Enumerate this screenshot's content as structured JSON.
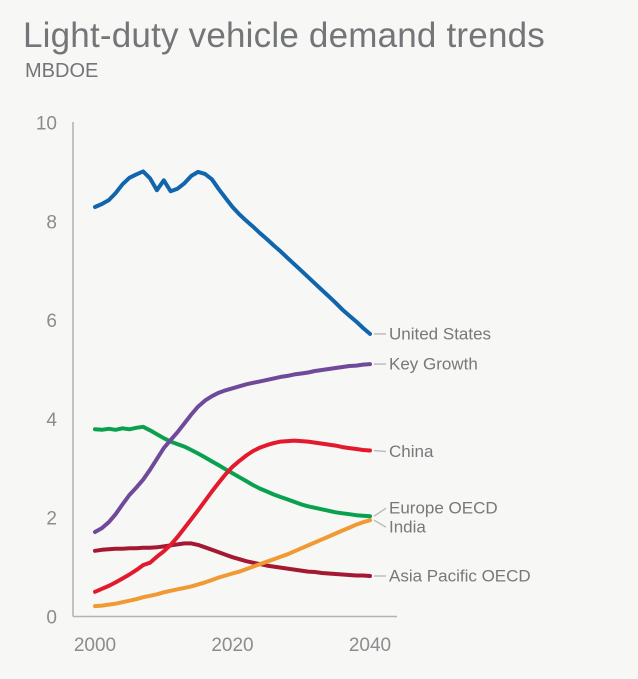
{
  "header": {
    "title": "Light-duty vehicle demand trends",
    "subtitle": "MBDOE"
  },
  "colors": {
    "background": "#f7f7f5",
    "title_text": "#747578",
    "axis": "#b4b4b4",
    "tick_text": "#8b8c8e",
    "label_text": "#77787b",
    "leader": "#b9b9b9"
  },
  "chart_data": {
    "type": "line",
    "title": "Light-duty vehicle demand trends",
    "ylabel": "MBDOE",
    "x_range": [
      2000,
      2040
    ],
    "x_step": 1,
    "ylim": [
      0,
      10
    ],
    "yticks": [
      0,
      2,
      4,
      6,
      8,
      10
    ],
    "xticks": [
      2000,
      2020,
      2040
    ],
    "grid": false,
    "legend_position": "right-end-labels",
    "series": [
      {
        "id": "asia-pacific-oecd",
        "name": "Asia Pacific OECD",
        "color": "#a41931",
        "label_dy": 0,
        "values": [
          1.34,
          1.36,
          1.37,
          1.38,
          1.38,
          1.39,
          1.39,
          1.4,
          1.4,
          1.41,
          1.43,
          1.45,
          1.47,
          1.49,
          1.49,
          1.46,
          1.41,
          1.36,
          1.31,
          1.26,
          1.21,
          1.17,
          1.13,
          1.1,
          1.07,
          1.04,
          1.02,
          1.0,
          0.98,
          0.96,
          0.94,
          0.92,
          0.91,
          0.89,
          0.88,
          0.87,
          0.86,
          0.85,
          0.84,
          0.84,
          0.83
        ]
      },
      {
        "id": "india",
        "name": "India",
        "color": "#ef9a33",
        "label_dy": 7,
        "values": [
          0.22,
          0.23,
          0.25,
          0.27,
          0.3,
          0.33,
          0.36,
          0.4,
          0.43,
          0.46,
          0.5,
          0.53,
          0.56,
          0.59,
          0.62,
          0.66,
          0.7,
          0.75,
          0.8,
          0.84,
          0.88,
          0.92,
          0.97,
          1.02,
          1.07,
          1.12,
          1.17,
          1.22,
          1.27,
          1.33,
          1.39,
          1.45,
          1.51,
          1.57,
          1.63,
          1.69,
          1.75,
          1.81,
          1.87,
          1.92,
          1.96
        ]
      },
      {
        "id": "europe-oecd",
        "name": "Europe OECD",
        "color": "#0aa14e",
        "label_dy": -8,
        "values": [
          3.8,
          3.79,
          3.81,
          3.79,
          3.82,
          3.8,
          3.83,
          3.85,
          3.78,
          3.7,
          3.62,
          3.55,
          3.5,
          3.45,
          3.38,
          3.31,
          3.23,
          3.15,
          3.07,
          2.99,
          2.91,
          2.83,
          2.75,
          2.67,
          2.6,
          2.54,
          2.48,
          2.43,
          2.38,
          2.33,
          2.28,
          2.24,
          2.21,
          2.18,
          2.15,
          2.12,
          2.1,
          2.08,
          2.06,
          2.05,
          2.04
        ]
      },
      {
        "id": "key-growth",
        "name": "Key Growth",
        "color": "#6f4a9a",
        "label_dy": 0,
        "values": [
          1.72,
          1.8,
          1.92,
          2.08,
          2.28,
          2.47,
          2.62,
          2.78,
          2.98,
          3.2,
          3.42,
          3.58,
          3.74,
          3.92,
          4.1,
          4.26,
          4.38,
          4.47,
          4.54,
          4.59,
          4.63,
          4.67,
          4.71,
          4.74,
          4.77,
          4.8,
          4.83,
          4.86,
          4.88,
          4.91,
          4.93,
          4.95,
          4.98,
          5.0,
          5.02,
          5.04,
          5.06,
          5.08,
          5.09,
          5.11,
          5.12
        ]
      },
      {
        "id": "china",
        "name": "China",
        "color": "#e3192d",
        "label_dy": 1,
        "values": [
          0.51,
          0.57,
          0.63,
          0.7,
          0.78,
          0.86,
          0.95,
          1.05,
          1.1,
          1.22,
          1.33,
          1.46,
          1.62,
          1.8,
          1.98,
          2.16,
          2.35,
          2.54,
          2.72,
          2.89,
          3.04,
          3.16,
          3.27,
          3.36,
          3.43,
          3.48,
          3.52,
          3.55,
          3.56,
          3.57,
          3.56,
          3.55,
          3.53,
          3.51,
          3.49,
          3.47,
          3.44,
          3.42,
          3.4,
          3.38,
          3.37
        ]
      },
      {
        "id": "united-states",
        "name": "United States",
        "color": "#1165ad",
        "label_dy": 0,
        "values": [
          8.3,
          8.36,
          8.44,
          8.58,
          8.76,
          8.89,
          8.96,
          9.02,
          8.88,
          8.64,
          8.84,
          8.62,
          8.67,
          8.78,
          8.93,
          9.01,
          8.97,
          8.86,
          8.66,
          8.48,
          8.3,
          8.15,
          8.02,
          7.9,
          7.77,
          7.65,
          7.52,
          7.4,
          7.27,
          7.14,
          7.01,
          6.88,
          6.75,
          6.62,
          6.49,
          6.36,
          6.22,
          6.1,
          5.98,
          5.85,
          5.73
        ]
      }
    ]
  }
}
